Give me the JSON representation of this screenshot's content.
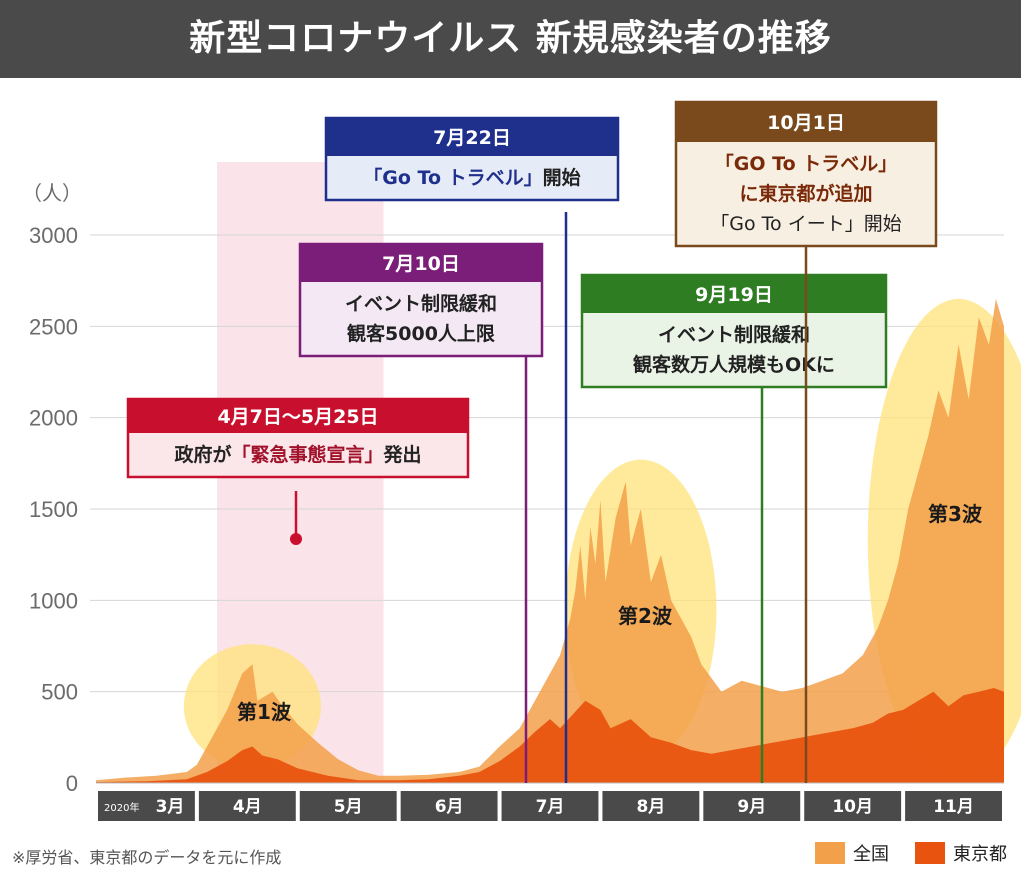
{
  "title": "新型コロナウイルス 新規感染者の推移",
  "source_note": "※厚労省、東京都のデータを元に作成",
  "legend": [
    {
      "label": "全国",
      "color": "#f3a04a"
    },
    {
      "label": "東京都",
      "color": "#e8540f"
    }
  ],
  "chart_data": {
    "type": "area",
    "unit_label": "（人）",
    "ylim": [
      0,
      3000
    ],
    "y_ticks": [
      "0",
      "500",
      "1000",
      "1500",
      "2000",
      "2500",
      "3000"
    ],
    "year_label": "2020年",
    "months": [
      "3月",
      "4月",
      "5月",
      "6月",
      "7月",
      "8月",
      "9月",
      "10月",
      "11月"
    ],
    "series": [
      {
        "name": "全国",
        "color": "#f3a04a",
        "points": [
          [
            0,
            15
          ],
          [
            0.3,
            30
          ],
          [
            0.6,
            40
          ],
          [
            0.9,
            60
          ],
          [
            1.0,
            100
          ],
          [
            1.1,
            200
          ],
          [
            1.2,
            300
          ],
          [
            1.3,
            400
          ],
          [
            1.45,
            600
          ],
          [
            1.55,
            650
          ],
          [
            1.6,
            450
          ],
          [
            1.75,
            500
          ],
          [
            1.85,
            420
          ],
          [
            2.0,
            320
          ],
          [
            2.2,
            220
          ],
          [
            2.4,
            130
          ],
          [
            2.6,
            70
          ],
          [
            2.8,
            40
          ],
          [
            3.0,
            40
          ],
          [
            3.3,
            45
          ],
          [
            3.6,
            60
          ],
          [
            3.8,
            90
          ],
          [
            4.0,
            200
          ],
          [
            4.2,
            300
          ],
          [
            4.35,
            450
          ],
          [
            4.5,
            600
          ],
          [
            4.6,
            700
          ],
          [
            4.7,
            900
          ],
          [
            4.75,
            1050
          ],
          [
            4.8,
            1300
          ],
          [
            4.85,
            1000
          ],
          [
            4.9,
            1400
          ],
          [
            4.95,
            1200
          ],
          [
            5.0,
            1550
          ],
          [
            5.05,
            1100
          ],
          [
            5.15,
            1450
          ],
          [
            5.25,
            1650
          ],
          [
            5.3,
            1300
          ],
          [
            5.4,
            1500
          ],
          [
            5.5,
            1100
          ],
          [
            5.6,
            1250
          ],
          [
            5.7,
            1000
          ],
          [
            5.8,
            900
          ],
          [
            5.9,
            800
          ],
          [
            6.0,
            650
          ],
          [
            6.2,
            500
          ],
          [
            6.4,
            560
          ],
          [
            6.6,
            530
          ],
          [
            6.8,
            500
          ],
          [
            7.0,
            520
          ],
          [
            7.2,
            560
          ],
          [
            7.4,
            600
          ],
          [
            7.6,
            700
          ],
          [
            7.75,
            850
          ],
          [
            7.85,
            1000
          ],
          [
            7.95,
            1200
          ],
          [
            8.05,
            1500
          ],
          [
            8.15,
            1700
          ],
          [
            8.25,
            1900
          ],
          [
            8.35,
            2150
          ],
          [
            8.45,
            2000
          ],
          [
            8.55,
            2400
          ],
          [
            8.65,
            2100
          ],
          [
            8.75,
            2550
          ],
          [
            8.85,
            2400
          ],
          [
            8.92,
            2650
          ],
          [
            9.0,
            2500
          ]
        ]
      },
      {
        "name": "東京都",
        "color": "#e8540f",
        "points": [
          [
            0,
            5
          ],
          [
            0.5,
            10
          ],
          [
            0.9,
            20
          ],
          [
            1.1,
            60
          ],
          [
            1.3,
            120
          ],
          [
            1.45,
            180
          ],
          [
            1.55,
            200
          ],
          [
            1.65,
            150
          ],
          [
            1.8,
            130
          ],
          [
            2.0,
            80
          ],
          [
            2.3,
            40
          ],
          [
            2.6,
            15
          ],
          [
            3.0,
            15
          ],
          [
            3.3,
            20
          ],
          [
            3.6,
            40
          ],
          [
            3.8,
            60
          ],
          [
            4.0,
            120
          ],
          [
            4.2,
            200
          ],
          [
            4.35,
            280
          ],
          [
            4.5,
            350
          ],
          [
            4.6,
            300
          ],
          [
            4.7,
            360
          ],
          [
            4.85,
            450
          ],
          [
            5.0,
            400
          ],
          [
            5.1,
            300
          ],
          [
            5.3,
            350
          ],
          [
            5.5,
            250
          ],
          [
            5.7,
            220
          ],
          [
            5.9,
            180
          ],
          [
            6.1,
            160
          ],
          [
            6.3,
            180
          ],
          [
            6.5,
            200
          ],
          [
            6.7,
            220
          ],
          [
            6.9,
            240
          ],
          [
            7.1,
            260
          ],
          [
            7.3,
            280
          ],
          [
            7.5,
            300
          ],
          [
            7.7,
            330
          ],
          [
            7.85,
            380
          ],
          [
            8.0,
            400
          ],
          [
            8.15,
            450
          ],
          [
            8.3,
            500
          ],
          [
            8.45,
            420
          ],
          [
            8.6,
            480
          ],
          [
            8.75,
            500
          ],
          [
            8.9,
            520
          ],
          [
            9.0,
            500
          ]
        ]
      }
    ],
    "highlight_period": {
      "start_month": 1.2,
      "end_month": 2.85,
      "color": "#fbe3ea"
    },
    "waves": [
      {
        "label": "第1波",
        "cx": 1.55,
        "cy": 420,
        "rx": 0.68,
        "ry": 340
      },
      {
        "label": "第2波",
        "cx": 5.4,
        "cy": 950,
        "rx": 0.75,
        "ry": 820
      },
      {
        "label": "第3波",
        "cx": 8.55,
        "cy": 1330,
        "rx": 0.9,
        "ry": 1320
      }
    ],
    "annotations": [
      {
        "id": "emergency",
        "head": "4月7日～5月25日",
        "body": [
          [
            "政府が",
            "「緊急事態宣言」",
            "発出"
          ]
        ],
        "color": "#c8102e",
        "bg": "#fbe6ea",
        "accent": "#a1122a"
      },
      {
        "id": "event-0710",
        "head": "7月10日",
        "body": [
          [
            "イベント制限緩和"
          ],
          [
            "観客5000人上限"
          ]
        ],
        "color": "#7b1e7a",
        "bg": "#f3e8f3",
        "accent": "#7b1e7a"
      },
      {
        "id": "goto-0722",
        "head": "7月22日",
        "body": [
          [
            "「Go To トラベル」",
            "開始"
          ]
        ],
        "color": "#1f2f8c",
        "bg": "#e6ebf8",
        "accent": "#1f2f8c"
      },
      {
        "id": "event-0919",
        "head": "9月19日",
        "body": [
          [
            "イベント制限緩和"
          ],
          [
            "観客数万人規模もOKに"
          ]
        ],
        "color": "#2e7d23",
        "bg": "#e9f4e6",
        "accent": "#2e7d23"
      },
      {
        "id": "goto-1001",
        "head": "10月1日",
        "body": [
          [
            "「GO To トラベル」"
          ],
          [
            "に東京都が追加"
          ],
          [
            "「Go To イート」開始"
          ]
        ],
        "color": "#7a4a1c",
        "bg": "#f8efe3",
        "accent": "#7a2a08"
      }
    ]
  }
}
